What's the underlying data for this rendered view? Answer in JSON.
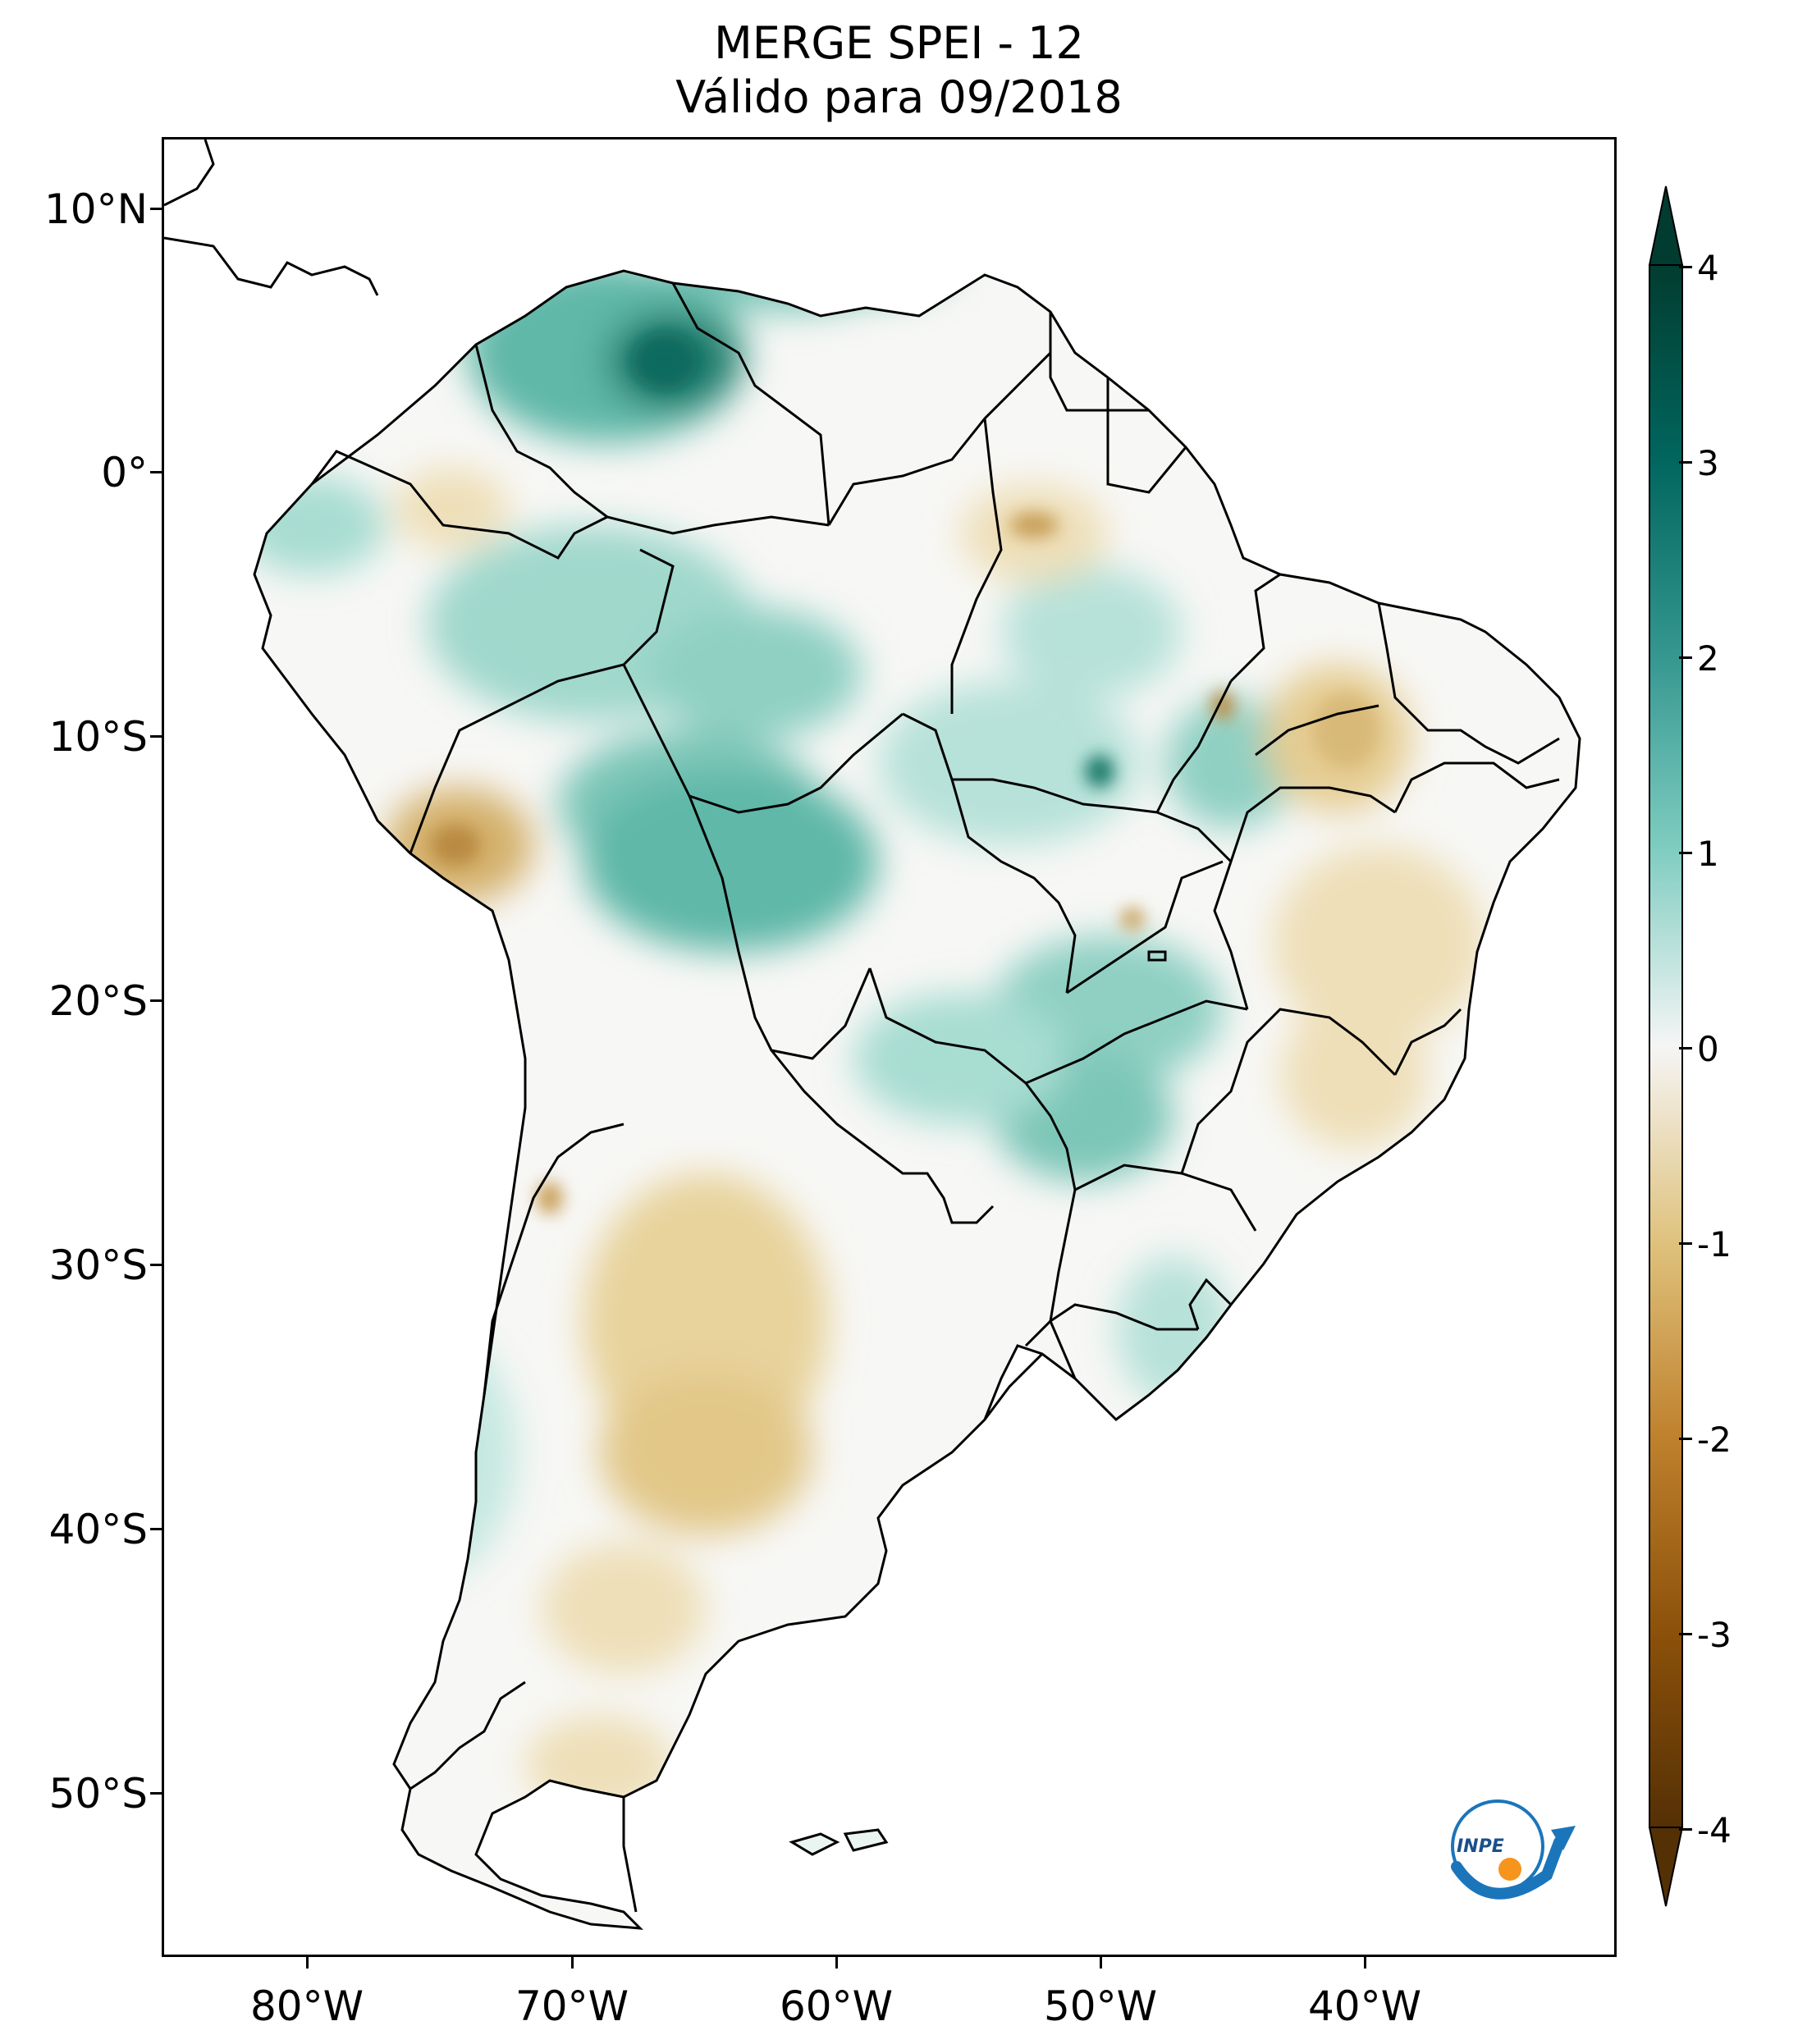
{
  "title": {
    "line1": "MERGE   SPEI - 12",
    "line2": "Válido para 09/2018"
  },
  "axes": {
    "lat_labels": [
      "10°N",
      "0°",
      "10°S",
      "20°S",
      "30°S",
      "40°S",
      "50°S"
    ],
    "lon_labels": [
      "80°W",
      "70°W",
      "60°W",
      "50°W",
      "40°W"
    ],
    "extent": {
      "lon_min": -85,
      "lon_max": -30,
      "lat_min": -56,
      "lat_max": 13
    }
  },
  "colorbar": {
    "ticks": [
      "4",
      "3",
      "2",
      "1",
      "0",
      "-1",
      "-2",
      "-3",
      "-4"
    ],
    "range": [
      -4,
      4
    ],
    "colormap": "BrBG",
    "colors": {
      "max": "#023c30",
      "high": "#35978f",
      "mid_high": "#80cdc1",
      "neutral": "#f5f5f5",
      "mid_low": "#dfc27d",
      "low": "#bf812d",
      "min": "#543005"
    },
    "extend": "both"
  },
  "logo": {
    "text": "INPE",
    "name": "inpe-logo"
  },
  "colors": {
    "border": "#000000",
    "wet_strong": "#0d6b5e",
    "wet": "#5fb8a8",
    "wet_light": "#c6e8e1",
    "dry_light": "#eedfb8",
    "dry": "#d4b06a",
    "dry_strong": "#a6702b"
  }
}
